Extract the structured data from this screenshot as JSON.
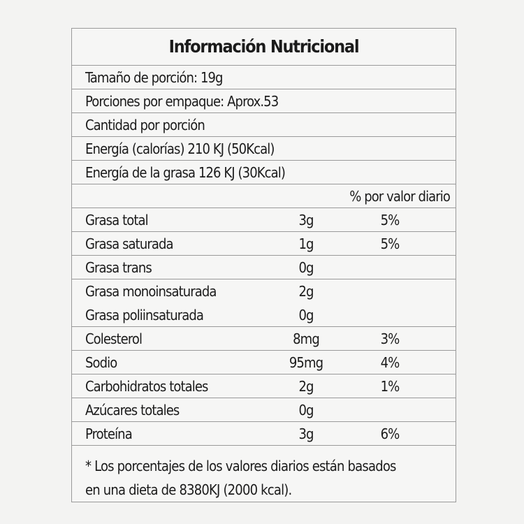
{
  "title": "Información Nutricional",
  "info": [
    "Tamaño de porción: 19g",
    "Porciones por empaque: Aprox.53",
    "Cantidad por porción",
    "Energía (calorías) 210 KJ (50Kcal)",
    "Energía de la grasa 126 KJ (30Kcal)"
  ],
  "daily_value_header": "% por valor diario",
  "nutrients": [
    {
      "name": "Grasa total",
      "amount": "3g",
      "dv": "5%"
    },
    {
      "name": "Grasa saturada",
      "amount": "1g",
      "dv": "5%"
    },
    {
      "name": "Grasa trans",
      "amount": "0g",
      "dv": ""
    },
    {
      "name": "Grasa monoinsaturada",
      "amount": "2g",
      "dv": ""
    },
    {
      "name": "Grasa poliinsaturada",
      "amount": "0g",
      "dv": ""
    },
    {
      "name": "Colesterol",
      "amount": "8mg",
      "dv": "3%"
    },
    {
      "name": "Sodio",
      "amount": "95mg",
      "dv": "4%"
    },
    {
      "name": "Carbohidratos totales",
      "amount": "2g",
      "dv": "1%"
    },
    {
      "name": "Azúcares totales",
      "amount": "0g",
      "dv": ""
    },
    {
      "name": "Proteína",
      "amount": "3g",
      "dv": "6%"
    }
  ],
  "footnote": [
    "* Los porcentajes de los valores diarios están basados",
    "en una dieta de 8380KJ (2000 kcal)."
  ]
}
